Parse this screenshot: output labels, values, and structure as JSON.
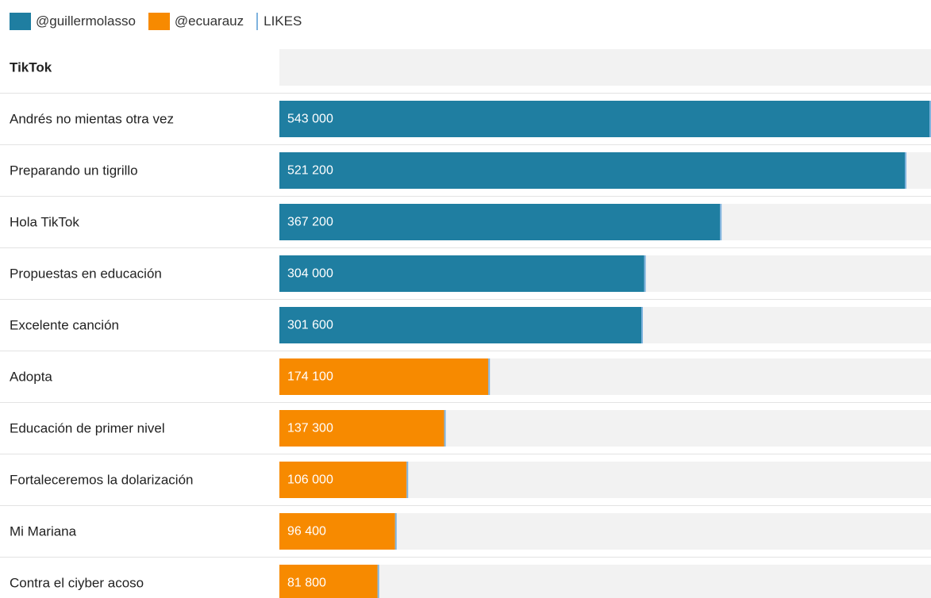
{
  "legend": {
    "series": [
      {
        "name": "@guillermolasso",
        "color": "#1f7ea1"
      },
      {
        "name": "@ecuarauz",
        "color": "#f78a00"
      }
    ],
    "metric_label": "LIKES",
    "metric_color": "#7fb3de"
  },
  "colors": {
    "track": "#f2f2f2",
    "divider": "#e3e3e3"
  },
  "chart_data": {
    "type": "bar",
    "orientation": "horizontal",
    "group_title": "TikTok",
    "xlim": [
      0,
      543000
    ],
    "categories": [
      "Andrés no mientas otra vez",
      "Preparando un tigrillo",
      "Hola TikTok",
      "Propuestas en educación",
      "Excelente canción",
      "Adopta",
      "Educación de primer nivel",
      "Fortaleceremos la dolarización",
      "Mi Mariana",
      "Contra el ciyber acoso"
    ],
    "values": [
      543000,
      521200,
      367200,
      304000,
      301600,
      174100,
      137300,
      106000,
      96400,
      81800
    ],
    "value_labels": [
      "543 000",
      "521 200",
      "367 200",
      "304 000",
      "301 600",
      "174 100",
      "137 300",
      "106 000",
      "96 400",
      "81 800"
    ],
    "series_of_bar": [
      "@guillermolasso",
      "@guillermolasso",
      "@guillermolasso",
      "@guillermolasso",
      "@guillermolasso",
      "@ecuarauz",
      "@ecuarauz",
      "@ecuarauz",
      "@ecuarauz",
      "@ecuarauz"
    ]
  }
}
